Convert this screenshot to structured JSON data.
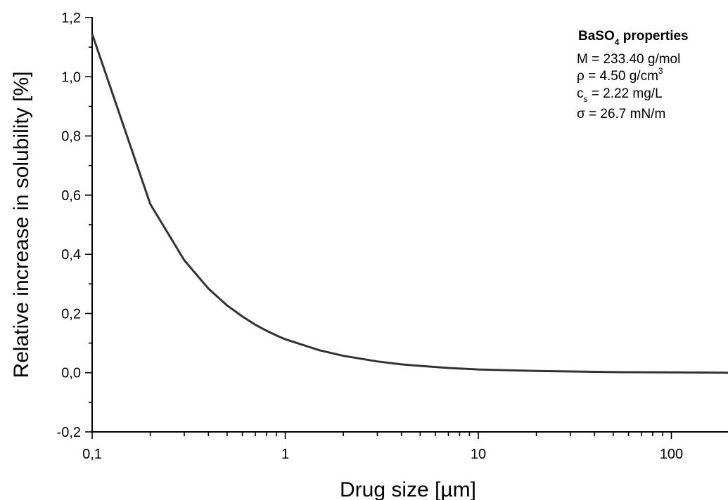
{
  "chart_data": {
    "type": "line",
    "xscale": "log",
    "xlim": [
      0.1,
      200
    ],
    "ylim": [
      -0.2,
      1.2
    ],
    "xlabel": "Drug size [µm]",
    "ylabel": "Relative increase in solubility [%]",
    "x_ticks": [
      {
        "value": 0.1,
        "label": "0,1"
      },
      {
        "value": 1,
        "label": "1"
      },
      {
        "value": 10,
        "label": "10"
      },
      {
        "value": 100,
        "label": "100"
      }
    ],
    "y_ticks": [
      {
        "value": -0.2,
        "label": "-0,2"
      },
      {
        "value": 0.0,
        "label": "0,0"
      },
      {
        "value": 0.2,
        "label": "0,2"
      },
      {
        "value": 0.4,
        "label": "0,4"
      },
      {
        "value": 0.6,
        "label": "0,6"
      },
      {
        "value": 0.8,
        "label": "0,8"
      },
      {
        "value": 1.0,
        "label": "1,0"
      },
      {
        "value": 1.2,
        "label": "1,2"
      }
    ],
    "y_minor_ticks": [
      -0.1,
      0.1,
      0.3,
      0.5,
      0.7,
      0.9,
      1.1
    ],
    "x_minor_ticks": [
      0.2,
      0.3,
      0.4,
      0.5,
      0.6,
      0.7,
      0.8,
      0.9,
      2,
      3,
      4,
      5,
      6,
      7,
      8,
      9,
      20,
      30,
      40,
      50,
      60,
      70,
      80,
      90,
      200
    ],
    "series": [
      {
        "x": [
          0.1,
          0.2,
          0.3,
          0.4,
          0.5,
          0.6,
          0.7,
          0.8,
          0.9,
          1,
          1.5,
          2,
          3,
          4,
          5,
          7,
          10,
          20,
          50,
          100,
          200
        ],
        "y": [
          1.145,
          0.57,
          0.38,
          0.284,
          0.227,
          0.19,
          0.162,
          0.142,
          0.126,
          0.113,
          0.076,
          0.057,
          0.038,
          0.028,
          0.023,
          0.016,
          0.011,
          0.006,
          0.002,
          0.001,
          0.0
        ]
      }
    ],
    "annotation": {
      "title_prefix": "BaSO",
      "title_sub": "4",
      "title_suffix": " properties",
      "line_m": "M = 233.40 g/mol",
      "rho_prefix": "ρ = 4.50 g/cm",
      "rho_sup": "3",
      "cs_prefix": "c",
      "cs_sub": "s",
      "cs_suffix": " = 2.22 mg/L",
      "sigma": "σ = 26.7 mN/m"
    }
  }
}
